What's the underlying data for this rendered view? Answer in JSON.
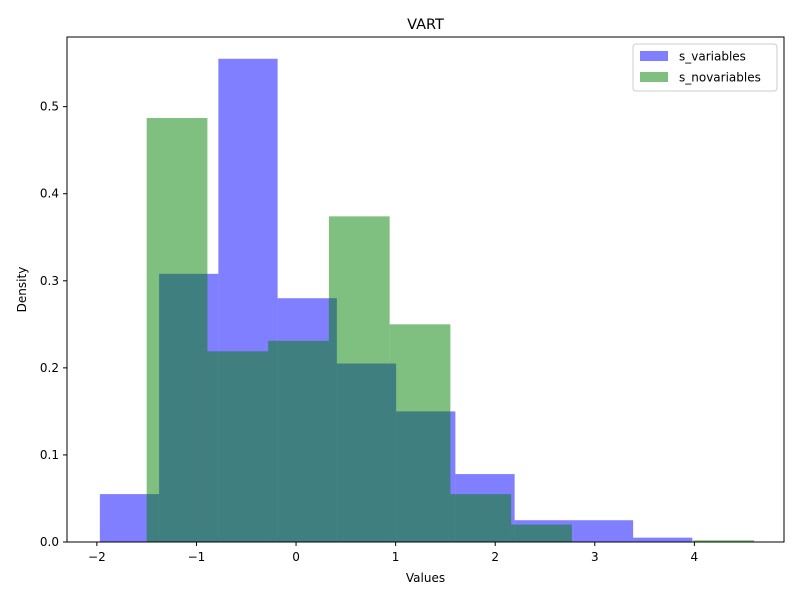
{
  "chart_data": {
    "type": "histogram",
    "title": "VART",
    "xlabel": "Values",
    "ylabel": "Density",
    "xlim": [
      -2.3,
      4.9
    ],
    "ylim": [
      0,
      0.58
    ],
    "xticks": [
      -2,
      -1,
      0,
      1,
      2,
      3,
      4
    ],
    "xtick_labels": [
      "−2",
      "−1",
      "0",
      "1",
      "2",
      "3",
      "4"
    ],
    "yticks": [
      0.0,
      0.1,
      0.2,
      0.3,
      0.4,
      0.5
    ],
    "ytick_labels": [
      "0.0",
      "0.1",
      "0.2",
      "0.3",
      "0.4",
      "0.5"
    ],
    "grid": false,
    "legend_position": "top-right",
    "series": [
      {
        "name": "s_variables",
        "color": "#0000ff",
        "alpha": 0.5,
        "bin_edges": [
          -1.97,
          -1.375,
          -0.78,
          -0.185,
          0.41,
          1.005,
          1.6,
          2.195,
          2.79,
          3.385,
          3.98
        ],
        "values": [
          0.055,
          0.308,
          0.555,
          0.28,
          0.205,
          0.15,
          0.078,
          0.025,
          0.025,
          0.005
        ]
      },
      {
        "name": "s_novariables",
        "color": "#008000",
        "alpha": 0.5,
        "bin_edges": [
          -1.5,
          -0.89,
          -0.28,
          0.33,
          0.94,
          1.55,
          2.16,
          2.77,
          3.38,
          3.99,
          4.6
        ],
        "values": [
          0.487,
          0.219,
          0.231,
          0.374,
          0.25,
          0.055,
          0.02,
          0.0,
          0.0,
          0.002
        ]
      }
    ]
  }
}
